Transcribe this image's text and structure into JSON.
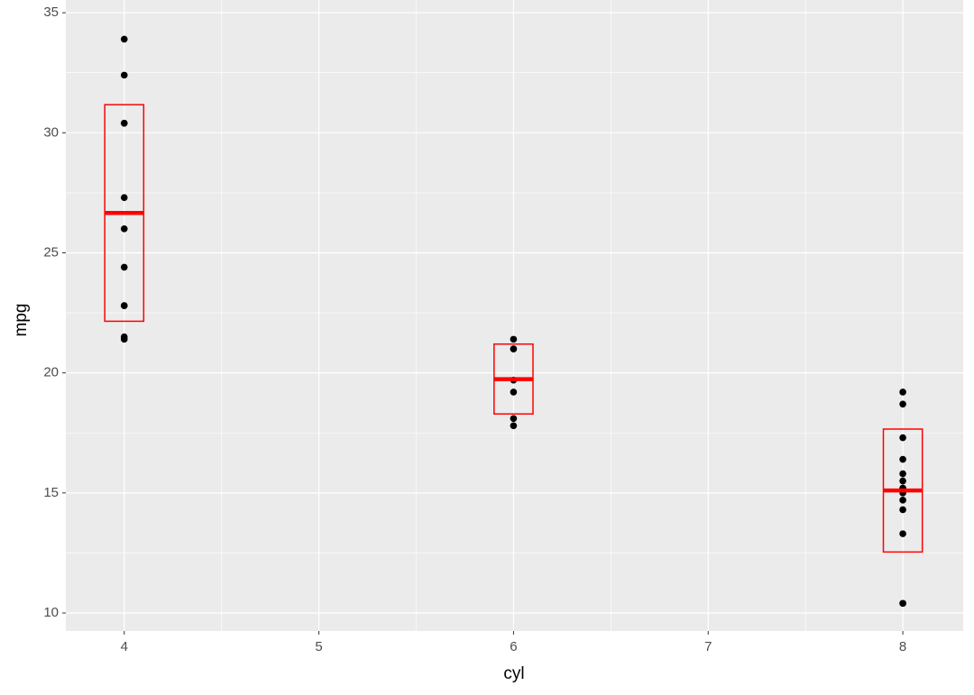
{
  "chart_data": {
    "type": "scatter",
    "x_label": "cyl",
    "y_label": "mpg",
    "xlim": [
      3.7,
      8.31
    ],
    "ylim": [
      9.25,
      35.53
    ],
    "xticks": [
      4,
      5,
      6,
      7,
      8
    ],
    "yticks": [
      10,
      15,
      20,
      25,
      30,
      35
    ],
    "grid": true,
    "minor_grid": true,
    "points": {
      "color": "#000000",
      "x": [
        4,
        4,
        4,
        4,
        4,
        4,
        4,
        4,
        4,
        4,
        4,
        6,
        6,
        6,
        6,
        6,
        6,
        6,
        8,
        8,
        8,
        8,
        8,
        8,
        8,
        8,
        8,
        8,
        8,
        8,
        8,
        8
      ],
      "y": [
        22.8,
        24.4,
        22.8,
        32.4,
        30.4,
        33.9,
        21.5,
        27.3,
        26.0,
        30.4,
        21.4,
        21.0,
        21.0,
        21.4,
        18.1,
        19.2,
        17.8,
        19.7,
        18.7,
        14.3,
        16.4,
        17.3,
        15.2,
        10.4,
        10.4,
        14.7,
        15.5,
        15.2,
        13.3,
        19.2,
        15.8,
        15.0
      ]
    },
    "crossbars": {
      "color": "#ff0000",
      "x": [
        4,
        6,
        8
      ],
      "y": [
        26.66,
        19.74,
        15.1
      ],
      "ymin": [
        22.15,
        18.29,
        12.54
      ],
      "ymax": [
        31.17,
        21.2,
        17.66
      ]
    }
  }
}
